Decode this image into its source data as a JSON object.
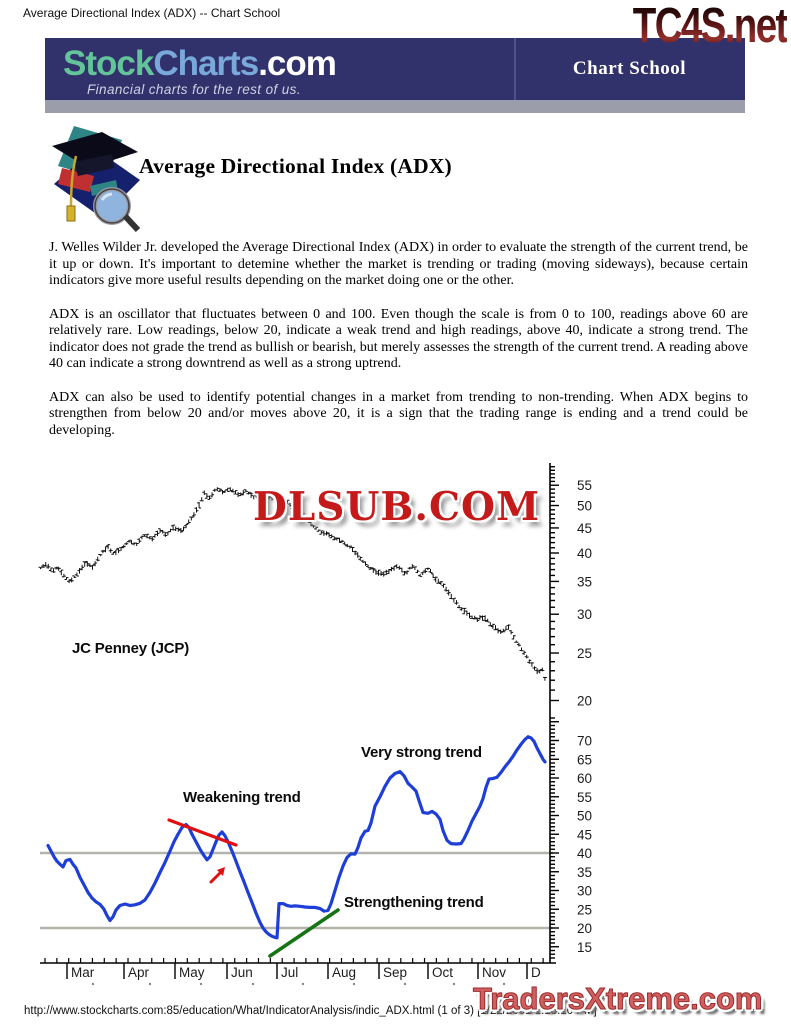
{
  "page": {
    "window_title": "Average Directional Index (ADX) -- Chart School",
    "watermark_top": "TC4S.net",
    "watermark_chart": "DLSUB.COM",
    "watermark_bottom": "TradersXtreme.com",
    "status_bar": "http://www.stockcharts.com:85/education/What/IndicatorAnalysis/indic_ADX.html (1 of 3) [1/22/2001 1:18:10 PM]"
  },
  "banner": {
    "logo_stock": "Stock",
    "logo_charts": "Charts",
    "logo_com": ".com",
    "tagline": "Financial charts for the rest of us.",
    "section": "Chart School",
    "bg_color": "#31316b",
    "graybar_color": "#9b9dab"
  },
  "article": {
    "title": "Average Directional Index (ADX)",
    "paragraphs": [
      "J. Welles Wilder Jr. developed the Average Directional Index (ADX) in order to evaluate the strength of the current trend, be it up or down. It's important to detemine whether the market is trending or trading (moving sideways), because certain indicators give more useful results depending on the market doing one or the other.",
      "ADX is an oscillator that fluctuates between 0 and 100. Even though the scale is from 0 to 100, readings above 60 are relatively rare. Low readings, below 20, indicate a weak trend and high readings, above 40, indicate a strong trend. The indicator does not grade the trend as bullish or bearish, but merely assesses the strength of the current trend. A reading above 40 can indicate a strong downtrend as well as a strong uptrend.",
      "ADX can also be used to identify potential changes in a market from trending to non-trending. When ADX begins to strengthen from below 20 and/or moves above 20, it is a sign that the trading range is ending and a trend could be developing."
    ]
  },
  "chart_data": [
    {
      "type": "bar",
      "title": "JC Penney (JCP)",
      "scale": "log",
      "ylim": [
        19.5,
        58
      ],
      "yticks": [
        20,
        25,
        30,
        35,
        40,
        45,
        50,
        55
      ],
      "bar_color": "#111111",
      "x_months": [
        "Mar",
        "Apr",
        "May",
        "Jun",
        "Jul",
        "Aug",
        "Sep",
        "Oct",
        "Nov",
        "D"
      ],
      "month_tick_x": [
        67,
        124,
        175,
        227,
        277,
        328,
        379,
        428,
        478,
        527
      ],
      "series": [
        {
          "name": "JCP daily price",
          "points": [
            [
              40,
              37.2
            ],
            [
              46,
              38
            ],
            [
              52,
              36.8
            ],
            [
              58,
              37.5
            ],
            [
              64,
              35.8
            ],
            [
              70,
              34.9
            ],
            [
              78,
              36.5
            ],
            [
              86,
              38.3
            ],
            [
              92,
              37.2
            ],
            [
              100,
              39.5
            ],
            [
              108,
              41.3
            ],
            [
              114,
              39.8
            ],
            [
              122,
              41
            ],
            [
              130,
              42.5
            ],
            [
              136,
              41.5
            ],
            [
              144,
              43.5
            ],
            [
              152,
              42.8
            ],
            [
              160,
              44.5
            ],
            [
              166,
              43.6
            ],
            [
              174,
              45.2
            ],
            [
              182,
              44.3
            ],
            [
              190,
              46.5
            ],
            [
              198,
              49.5
            ],
            [
              204,
              53
            ],
            [
              210,
              51.5
            ],
            [
              216,
              54.5
            ],
            [
              222,
              53
            ],
            [
              230,
              54
            ],
            [
              238,
              52.5
            ],
            [
              246,
              53.5
            ],
            [
              254,
              52
            ],
            [
              262,
              52.8
            ],
            [
              270,
              51.5
            ],
            [
              278,
              52.3
            ],
            [
              286,
              51
            ],
            [
              294,
              49.5
            ],
            [
              302,
              48
            ],
            [
              310,
              46
            ],
            [
              318,
              44.5
            ],
            [
              326,
              43.8
            ],
            [
              334,
              43
            ],
            [
              342,
              42.3
            ],
            [
              350,
              41.2
            ],
            [
              358,
              39.5
            ],
            [
              366,
              38
            ],
            [
              374,
              36.8
            ],
            [
              382,
              36.2
            ],
            [
              390,
              36.8
            ],
            [
              398,
              37.5
            ],
            [
              406,
              36.3
            ],
            [
              412,
              37.8
            ],
            [
              420,
              36
            ],
            [
              428,
              37.2
            ],
            [
              436,
              35.3
            ],
            [
              444,
              34.2
            ],
            [
              452,
              32.5
            ],
            [
              460,
              31
            ],
            [
              468,
              30
            ],
            [
              476,
              29.3
            ],
            [
              484,
              29.6
            ],
            [
              492,
              28.5
            ],
            [
              500,
              27.6
            ],
            [
              508,
              28.3
            ],
            [
              514,
              26.8
            ],
            [
              522,
              25.3
            ],
            [
              530,
              24
            ],
            [
              538,
              22.8
            ],
            [
              542,
              23.3
            ],
            [
              547,
              21.3
            ]
          ]
        }
      ]
    },
    {
      "type": "line",
      "name": "ADX",
      "ylim": [
        12,
        76
      ],
      "yticks": [
        15,
        20,
        25,
        30,
        35,
        40,
        45,
        50,
        55,
        60,
        65,
        70
      ],
      "ref_lines": [
        20,
        40
      ],
      "line_color": "#1e3ed8",
      "ref_color": "#b3b3ab",
      "points": [
        [
          48,
          42
        ],
        [
          51,
          40.5
        ],
        [
          54,
          39
        ],
        [
          57,
          37.8
        ],
        [
          60,
          37
        ],
        [
          63,
          36.3
        ],
        [
          66,
          38
        ],
        [
          70,
          38.3
        ],
        [
          73,
          37
        ],
        [
          76,
          36
        ],
        [
          80,
          33.5
        ],
        [
          84,
          31.5
        ],
        [
          88,
          29.5
        ],
        [
          92,
          28
        ],
        [
          96,
          27
        ],
        [
          100,
          26.3
        ],
        [
          104,
          25
        ],
        [
          107,
          23.3
        ],
        [
          110,
          22
        ],
        [
          113,
          23
        ],
        [
          116,
          24.8
        ],
        [
          120,
          26
        ],
        [
          125,
          26.4
        ],
        [
          130,
          26
        ],
        [
          135,
          26.2
        ],
        [
          140,
          26.6
        ],
        [
          145,
          27.5
        ],
        [
          150,
          29.5
        ],
        [
          155,
          32
        ],
        [
          160,
          34.8
        ],
        [
          165,
          37.5
        ],
        [
          170,
          40.5
        ],
        [
          174,
          43
        ],
        [
          178,
          45
        ],
        [
          182,
          46.8
        ],
        [
          186,
          47.6
        ],
        [
          189,
          46.8
        ],
        [
          192,
          45
        ],
        [
          196,
          43
        ],
        [
          200,
          41
        ],
        [
          204,
          39.3
        ],
        [
          207,
          38.2
        ],
        [
          210,
          39
        ],
        [
          213,
          41
        ],
        [
          216,
          43
        ],
        [
          219,
          44.8
        ],
        [
          222,
          45.6
        ],
        [
          225,
          44.6
        ],
        [
          228,
          43
        ],
        [
          232,
          40.5
        ],
        [
          236,
          37.8
        ],
        [
          240,
          35
        ],
        [
          244,
          32.3
        ],
        [
          248,
          29.5
        ],
        [
          252,
          26.8
        ],
        [
          256,
          24
        ],
        [
          260,
          21.5
        ],
        [
          263,
          20
        ],
        [
          266,
          19
        ],
        [
          269,
          18.3
        ],
        [
          272,
          17.8
        ],
        [
          275,
          17.5
        ],
        [
          277,
          17.4
        ],
        [
          279,
          26.5
        ],
        [
          283,
          26.5
        ],
        [
          287,
          26
        ],
        [
          291,
          25.8
        ],
        [
          295,
          25.9
        ],
        [
          300,
          25.8
        ],
        [
          305,
          25.6
        ],
        [
          310,
          25.5
        ],
        [
          315,
          25.5
        ],
        [
          320,
          25.2
        ],
        [
          324,
          24.5
        ],
        [
          328,
          24.7
        ],
        [
          331,
          26.5
        ],
        [
          335,
          30
        ],
        [
          339,
          33.5
        ],
        [
          343,
          36.5
        ],
        [
          347,
          38.8
        ],
        [
          351,
          39.8
        ],
        [
          355,
          39.7
        ],
        [
          358,
          41.5
        ],
        [
          361,
          44
        ],
        [
          365,
          45.8
        ],
        [
          368,
          46
        ],
        [
          371,
          48
        ],
        [
          375,
          52.5
        ],
        [
          380,
          55
        ],
        [
          385,
          57.8
        ],
        [
          390,
          60
        ],
        [
          395,
          61.2
        ],
        [
          400,
          61.7
        ],
        [
          404,
          60.6
        ],
        [
          408,
          58.6
        ],
        [
          412,
          57.6
        ],
        [
          416,
          56.5
        ],
        [
          419,
          54
        ],
        [
          423,
          50.8
        ],
        [
          428,
          50.6
        ],
        [
          432,
          51.1
        ],
        [
          436,
          50.4
        ],
        [
          440,
          49
        ],
        [
          443,
          46
        ],
        [
          447,
          43.4
        ],
        [
          451,
          42.5
        ],
        [
          456,
          42.4
        ],
        [
          461,
          42.5
        ],
        [
          464,
          43.8
        ],
        [
          468,
          46
        ],
        [
          472,
          48.5
        ],
        [
          476,
          50.5
        ],
        [
          480,
          52.5
        ],
        [
          483,
          54.5
        ],
        [
          486,
          57.5
        ],
        [
          489,
          59.7
        ],
        [
          493,
          59.9
        ],
        [
          497,
          60.2
        ],
        [
          501,
          61.5
        ],
        [
          505,
          63
        ],
        [
          509,
          64.3
        ],
        [
          513,
          65.8
        ],
        [
          517,
          67.5
        ],
        [
          521,
          69
        ],
        [
          525,
          70.3
        ],
        [
          528,
          71
        ],
        [
          531,
          70.7
        ],
        [
          534,
          69.8
        ],
        [
          537,
          68
        ],
        [
          540,
          66.5
        ],
        [
          543,
          65
        ],
        [
          545,
          64.3
        ]
      ],
      "annotations": {
        "weakening": {
          "label": "Weakening trend"
        },
        "very_strong": {
          "label": "Very strong trend"
        },
        "strengthening": {
          "label": "Strengthening trend"
        }
      },
      "trend_marks": {
        "red_line": [
          [
            169,
            820
          ],
          [
            236,
            845
          ]
        ],
        "red_arrow": [
          [
            211,
            882
          ],
          [
            222,
            871
          ]
        ],
        "green_line": [
          [
            270,
            956
          ],
          [
            338,
            910
          ]
        ],
        "red_color": "#e01010",
        "green_color": "#157515"
      }
    }
  ]
}
